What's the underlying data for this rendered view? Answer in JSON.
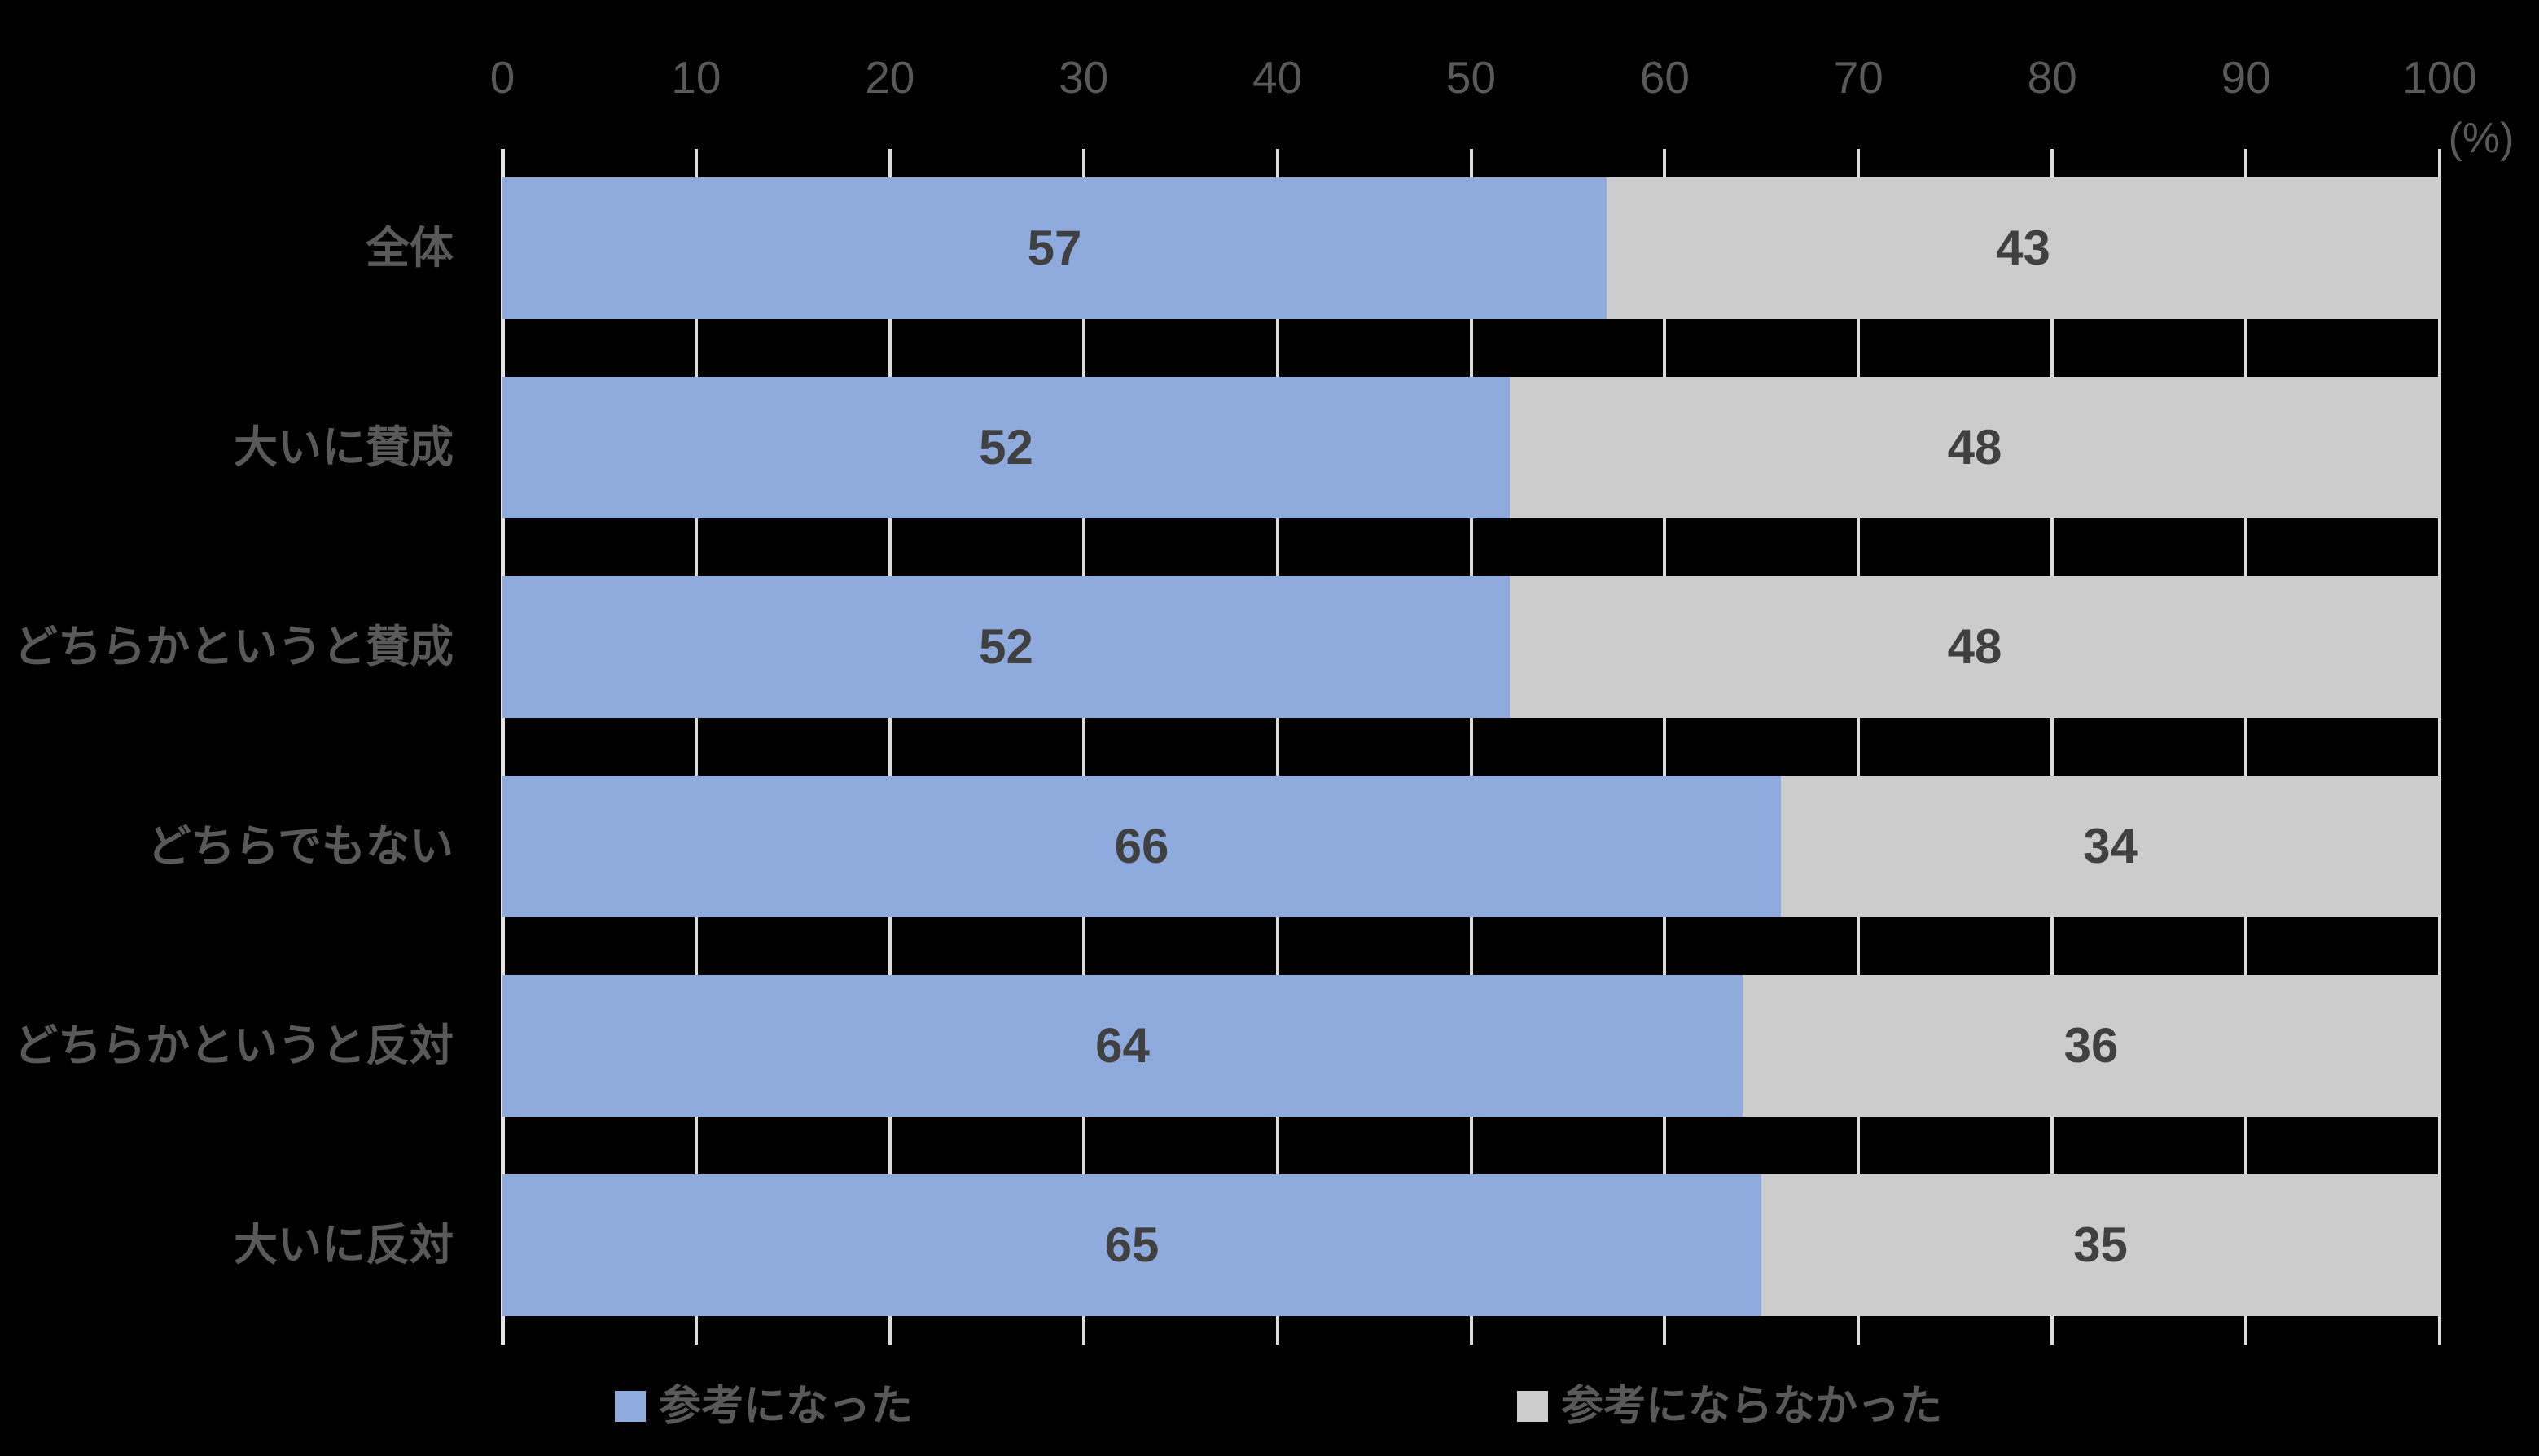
{
  "chart_data": {
    "type": "bar",
    "orientation": "horizontal",
    "stacked": true,
    "title": "",
    "categories": [
      "全体",
      "大いに賛成",
      "どちらかというと賛成",
      "どちらでもない",
      "どちらかというと反対",
      "大いに反対"
    ],
    "series": [
      {
        "name": "参考になった",
        "color": "#8FAADC",
        "values": [
          57,
          52,
          52,
          66,
          64,
          65
        ]
      },
      {
        "name": "参考にならなかった",
        "color": "#CCCCCC",
        "values": [
          43,
          48,
          48,
          34,
          36,
          35
        ]
      }
    ],
    "xlim": [
      0,
      100
    ],
    "x_ticks": [
      0,
      10,
      20,
      30,
      40,
      50,
      60,
      70,
      80,
      90,
      100
    ],
    "x_unit": "(%)",
    "grid": "vertical gridline ticks every 10%, visible between bars",
    "legend_position": "bottom",
    "value_labels": "centered inside each segment"
  },
  "axis": {
    "tick_labels": [
      "0",
      "10",
      "20",
      "30",
      "40",
      "50",
      "60",
      "70",
      "80",
      "90",
      "100"
    ],
    "unit_label": "(%)"
  },
  "legend": {
    "items": [
      {
        "label": "参考になった",
        "color": "#8FAADC"
      },
      {
        "label": "参考にならなかった",
        "color": "#CCCCCC"
      }
    ]
  },
  "colors": {
    "background": "#000000",
    "bar_blue": "#8FAADC",
    "bar_gray": "#CCCCCC",
    "value_text": "#404040",
    "label_text": "#595959",
    "grid_line": "#DCDCDC",
    "axis_line": "#E4E4E4"
  }
}
